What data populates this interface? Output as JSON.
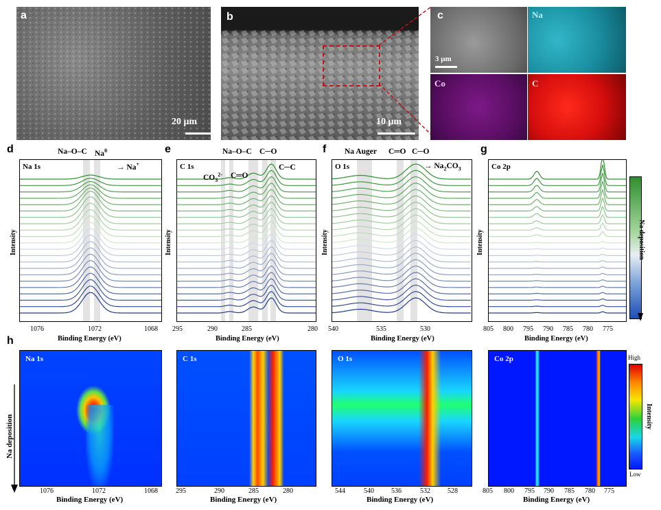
{
  "panel_letters": {
    "a": "a",
    "b": "b",
    "c": "c",
    "d": "d",
    "e": "e",
    "f": "f",
    "g": "g",
    "h": "h"
  },
  "sem": {
    "a_scale": "20 μm",
    "b_scale": "10 μm",
    "c_scale": "3 μm",
    "c_maps": {
      "na": "Na",
      "co": "Co",
      "c": "C"
    }
  },
  "spectra": {
    "d": {
      "title": "Na 1s",
      "annotations": {
        "naoc": "Na–O–C",
        "na0": "Na",
        "na0_sup": "0",
        "naplus": "Na",
        "naplus_sup": "+"
      },
      "ticks": [
        "1076",
        "1072",
        "1068"
      ],
      "xlabel": "Binding Energy (eV)",
      "ylabel": "Intensity"
    },
    "e": {
      "title": "C 1s",
      "annotations": {
        "naoc": "Na–O–C",
        "co": "C─O",
        "co3": "CO",
        "co3_sup": "3",
        "co3_sup2": "2-",
        "ceo": "C═O",
        "cc": "C─C"
      },
      "ticks": [
        "295",
        "290",
        "285",
        "280"
      ],
      "xlabel": "Binding Energy (eV)",
      "ylabel": "Intensity"
    },
    "f": {
      "title": "O 1s",
      "annotations": {
        "auger": "Na Auger",
        "ceo": "C═O",
        "co": "C─O",
        "na2co3": "Na",
        "na2co3_sub": "2",
        "na2co3_tail": "CO",
        "na2co3_sub2": "3"
      },
      "ticks": [
        "540",
        "535",
        "530"
      ],
      "xlabel": "Binding Energy (eV)",
      "ylabel": "Intensity"
    },
    "g": {
      "title": "Co 2p",
      "ticks": [
        "805",
        "800",
        "795",
        "790",
        "785",
        "780",
        "775"
      ],
      "xlabel": "Binding Energy (eV)",
      "ylabel": "Intensity",
      "colorbar_label": "Na deposition"
    }
  },
  "heatmaps": {
    "ylabel": "Na deposition",
    "na": {
      "title": "Na 1s",
      "ticks": [
        "1076",
        "1072",
        "1068"
      ],
      "xlabel": "Binding Energy (eV)"
    },
    "c": {
      "title": "C 1s",
      "ticks": [
        "295",
        "290",
        "285",
        "280"
      ],
      "xlabel": "Binding Energy (eV)"
    },
    "o": {
      "title": "O 1s",
      "ticks": [
        "544",
        "540",
        "536",
        "532",
        "528"
      ],
      "xlabel": "Binding Energy (eV)"
    },
    "co": {
      "title": "Co 2p",
      "ticks": [
        "805",
        "800",
        "795",
        "790",
        "785",
        "780",
        "775"
      ],
      "xlabel": "Binding Energy (eV)"
    },
    "colorbar": {
      "high": "High",
      "low": "Low",
      "label": "Intensity"
    }
  },
  "colors": {
    "blue_end": "#1f3d8c",
    "green_end": "#2d8f2d",
    "band": "#d9d9d9"
  }
}
